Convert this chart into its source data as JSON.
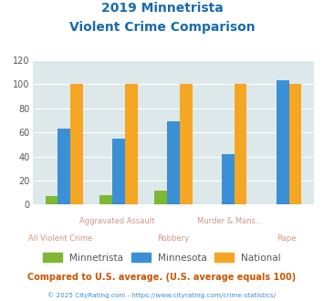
{
  "title_line1": "2019 Minnetrista",
  "title_line2": "Violent Crime Comparison",
  "cat_line1": [
    "",
    "Aggravated Assault",
    "",
    "Murder & Mans...",
    ""
  ],
  "cat_line2": [
    "All Violent Crime",
    "",
    "Robbery",
    "",
    "Rape"
  ],
  "minnetrista": [
    7,
    8,
    12,
    0,
    0
  ],
  "minnesota": [
    63,
    55,
    69,
    42,
    103
  ],
  "national": [
    100,
    100,
    100,
    100,
    100
  ],
  "bar_colors": {
    "minnetrista": "#7db733",
    "minnesota": "#3b8fd4",
    "national": "#f5a623"
  },
  "ylim": [
    0,
    120
  ],
  "yticks": [
    0,
    20,
    40,
    60,
    80,
    100,
    120
  ],
  "bg_color": "#dce8ea",
  "title_color": "#1a6aab",
  "footer_note": "Compared to U.S. average. (U.S. average equals 100)",
  "footer_copy": "© 2025 CityRating.com - https://www.cityrating.com/crime-statistics/",
  "legend_labels": [
    "Minnetrista",
    "Minnesota",
    "National"
  ],
  "footer_note_color": "#cc5500",
  "footer_copy_color": "#3b8fd4",
  "xtick_color": "#cc9988",
  "ytick_color": "#555555"
}
